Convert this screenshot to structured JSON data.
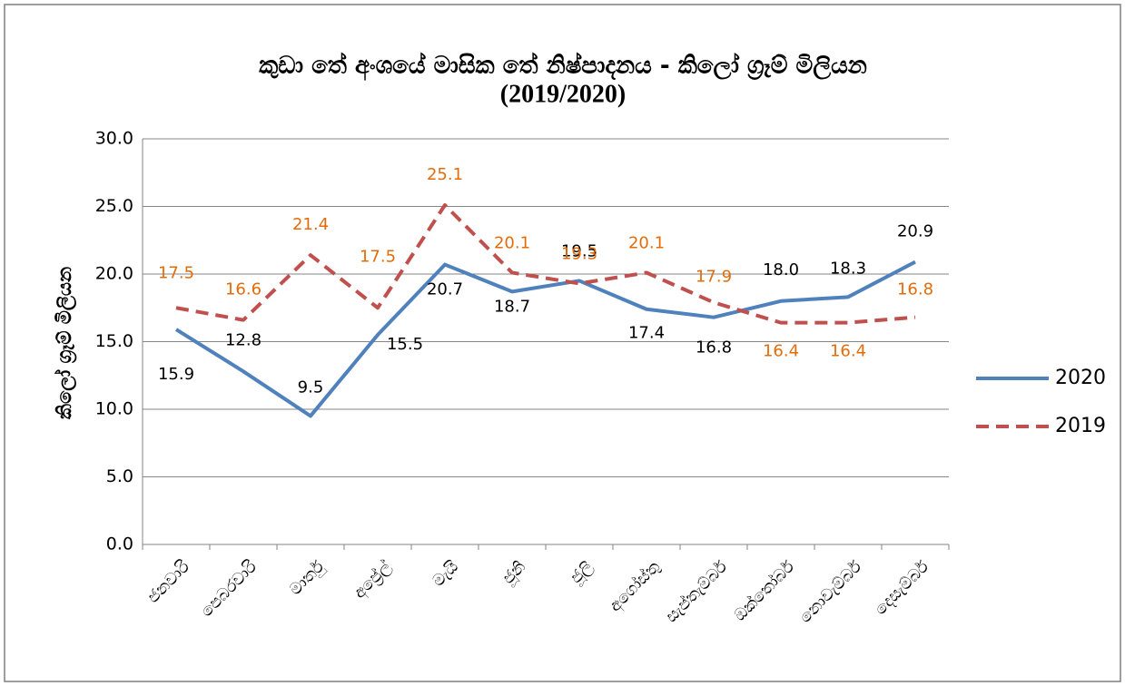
{
  "chart_data": {
    "type": "line",
    "title": [
      "කුඩා තේ අංශයේ මාසික තේ නිෂ්පාදනය - කිලෝ ග්‍රෑම් මිලියන",
      "(2019/2020)"
    ],
    "y_label": "කිලෝ ග්‍රෑම් මිලියන",
    "categories": [
      "ජනවාරි",
      "පෙබරවාරි",
      "මාර්තු",
      "අප්‍රේල්",
      "මැයි",
      "ජූනි",
      "ජූලි",
      "අගෝස්තු",
      "සැප්තැම්බර්",
      "ඔක්තෝබර්",
      "නොවැම්බර්",
      "දෙසැම්බර්"
    ],
    "series": [
      {
        "name": "2020",
        "color": "#4f81bd",
        "dash": "solid",
        "label_color": "#000000",
        "values": [
          15.9,
          12.8,
          9.5,
          15.5,
          20.7,
          18.7,
          19.5,
          17.4,
          16.8,
          18.0,
          18.3,
          20.9
        ],
        "value_labels": [
          "15.9",
          "12.8",
          "9.5",
          "15.5",
          "20.7",
          "18.7",
          "19.5",
          "17.4",
          "16.8",
          "18.0",
          "18.3",
          "20.9"
        ]
      },
      {
        "name": "2019",
        "color": "#c0504d",
        "dash": "dashed",
        "label_color": "#e36c09",
        "values": [
          17.5,
          16.6,
          21.4,
          17.5,
          25.1,
          20.1,
          19.3,
          20.1,
          17.9,
          16.4,
          16.4,
          16.8
        ],
        "value_labels": [
          "17.5",
          "16.6",
          "21.4",
          "17.5",
          "25.1",
          "20.1",
          "19.3",
          "20.1",
          "17.9",
          "16.4",
          "16.4",
          "16.8"
        ]
      }
    ],
    "ylim": [
      0,
      30
    ],
    "yticks": [
      {
        "value": 0,
        "label": "0.0"
      },
      {
        "value": 5,
        "label": "5.0"
      },
      {
        "value": 10,
        "label": "10.0"
      },
      {
        "value": 15,
        "label": "15.0"
      },
      {
        "value": 20,
        "label": "20.0"
      },
      {
        "value": 25,
        "label": "25.0"
      },
      {
        "value": 30,
        "label": "30.0"
      }
    ],
    "grid": true,
    "legend": "right"
  }
}
